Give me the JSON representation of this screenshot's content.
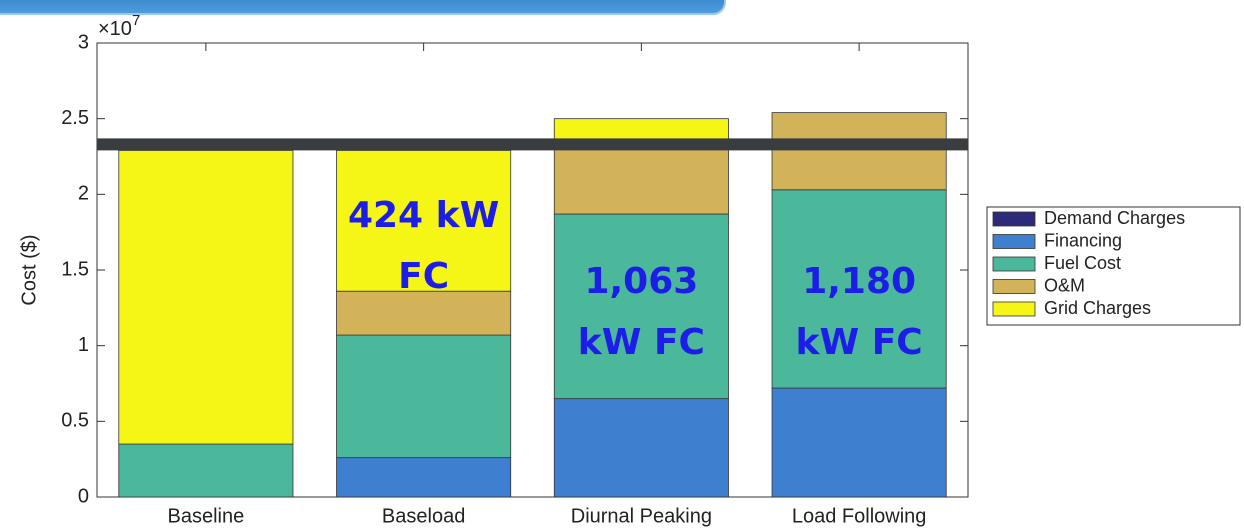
{
  "chart_data": {
    "type": "stacked_bar",
    "ylabel": "Cost ($)",
    "y_multiplier": {
      "base": "×10",
      "exponent": "7"
    },
    "categories": [
      "Baseline",
      "Baseload",
      "Diurnal Peaking",
      "Load Following"
    ],
    "series": [
      {
        "name": "Demand Charges",
        "color": "#2e2a7a",
        "values": [
          0,
          0,
          0,
          0
        ]
      },
      {
        "name": "Financing",
        "color": "#3f7fd0",
        "values": [
          0,
          0.26,
          0.65,
          0.72
        ]
      },
      {
        "name": "Fuel Cost",
        "color": "#4bb89b",
        "values": [
          0.35,
          0.81,
          1.22,
          1.31
        ]
      },
      {
        "name": "O&M",
        "color": "#d2b35a",
        "values": [
          0,
          0.29,
          0.43,
          0.51
        ]
      },
      {
        "name": "Grid Charges",
        "color": "#f5f516",
        "values": [
          1.94,
          0.93,
          0.2,
          0
        ]
      }
    ],
    "reference_line": 2.33,
    "annotations": [
      {
        "category": 1,
        "lines": [
          "424 kW",
          "FC"
        ]
      },
      {
        "category": 2,
        "lines": [
          "1,063",
          "kW FC"
        ]
      },
      {
        "category": 3,
        "lines": [
          "1,180",
          "kW FC"
        ]
      }
    ],
    "ylim": [
      0,
      3
    ],
    "yticks": [
      0,
      0.5,
      1,
      1.5,
      2,
      2.5,
      3
    ],
    "legend": "right"
  }
}
